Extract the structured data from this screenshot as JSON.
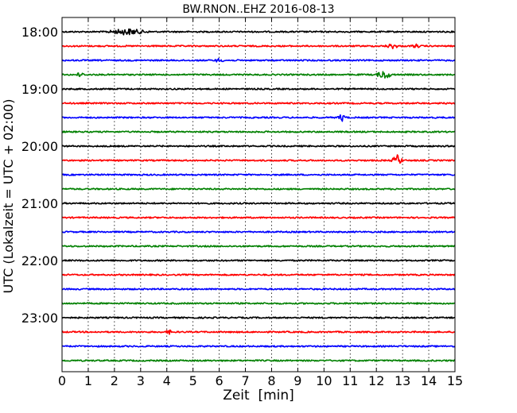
{
  "chart_data": {
    "type": "line",
    "title": "BW.RNON..EHZ 2016-08-13",
    "xlabel": "Zeit  [min]",
    "ylabel": "UTC (Lokalzeit = UTC + 02:00)",
    "xlim": [
      0,
      15
    ],
    "xticks": [
      0,
      1,
      2,
      3,
      4,
      5,
      6,
      7,
      8,
      9,
      10,
      11,
      12,
      13,
      14,
      15
    ],
    "ytick_labels": [
      "18:00",
      "19:00",
      "20:00",
      "21:00",
      "22:00",
      "23:00"
    ],
    "grid": "vertical dotted",
    "trace_colors": [
      "#000000",
      "#ff0000",
      "#0000ff",
      "#008000"
    ],
    "traces": [
      {
        "start": "18:00",
        "color": "#000000",
        "events": [
          {
            "x": 2.5,
            "amp": 0.25,
            "width": 0.9
          }
        ]
      },
      {
        "start": "18:15",
        "color": "#ff0000",
        "events": [
          {
            "x": 12.6,
            "amp": 0.2,
            "width": 0.3
          },
          {
            "x": 13.5,
            "amp": 0.15,
            "width": 0.2
          }
        ]
      },
      {
        "start": "18:30",
        "color": "#0000ff",
        "events": [
          {
            "x": 6.0,
            "amp": 0.15,
            "width": 0.2
          }
        ]
      },
      {
        "start": "18:45",
        "color": "#008000",
        "events": [
          {
            "x": 0.7,
            "amp": 0.25,
            "width": 0.15
          },
          {
            "x": 12.3,
            "amp": 0.35,
            "width": 0.35
          }
        ]
      },
      {
        "start": "19:00",
        "color": "#000000",
        "events": []
      },
      {
        "start": "19:15",
        "color": "#ff0000",
        "events": []
      },
      {
        "start": "19:30",
        "color": "#0000ff",
        "events": [
          {
            "x": 10.7,
            "amp": 0.3,
            "width": 0.2
          }
        ]
      },
      {
        "start": "19:45",
        "color": "#008000",
        "events": []
      },
      {
        "start": "20:00",
        "color": "#000000",
        "events": []
      },
      {
        "start": "20:15",
        "color": "#ff0000",
        "events": [
          {
            "x": 12.8,
            "amp": 0.45,
            "width": 0.25
          }
        ]
      },
      {
        "start": "20:30",
        "color": "#0000ff",
        "events": []
      },
      {
        "start": "20:45",
        "color": "#008000",
        "events": []
      },
      {
        "start": "21:00",
        "color": "#000000",
        "events": []
      },
      {
        "start": "21:15",
        "color": "#ff0000",
        "events": []
      },
      {
        "start": "21:30",
        "color": "#0000ff",
        "events": []
      },
      {
        "start": "21:45",
        "color": "#008000",
        "events": []
      },
      {
        "start": "22:00",
        "color": "#000000",
        "events": []
      },
      {
        "start": "22:15",
        "color": "#ff0000",
        "events": []
      },
      {
        "start": "22:30",
        "color": "#0000ff",
        "events": []
      },
      {
        "start": "22:45",
        "color": "#008000",
        "events": []
      },
      {
        "start": "23:00",
        "color": "#000000",
        "events": []
      },
      {
        "start": "23:15",
        "color": "#ff0000",
        "events": [
          {
            "x": 4.1,
            "amp": 0.15,
            "width": 0.2
          }
        ]
      },
      {
        "start": "23:30",
        "color": "#0000ff",
        "events": []
      },
      {
        "start": "23:45",
        "color": "#008000",
        "events": []
      }
    ]
  }
}
